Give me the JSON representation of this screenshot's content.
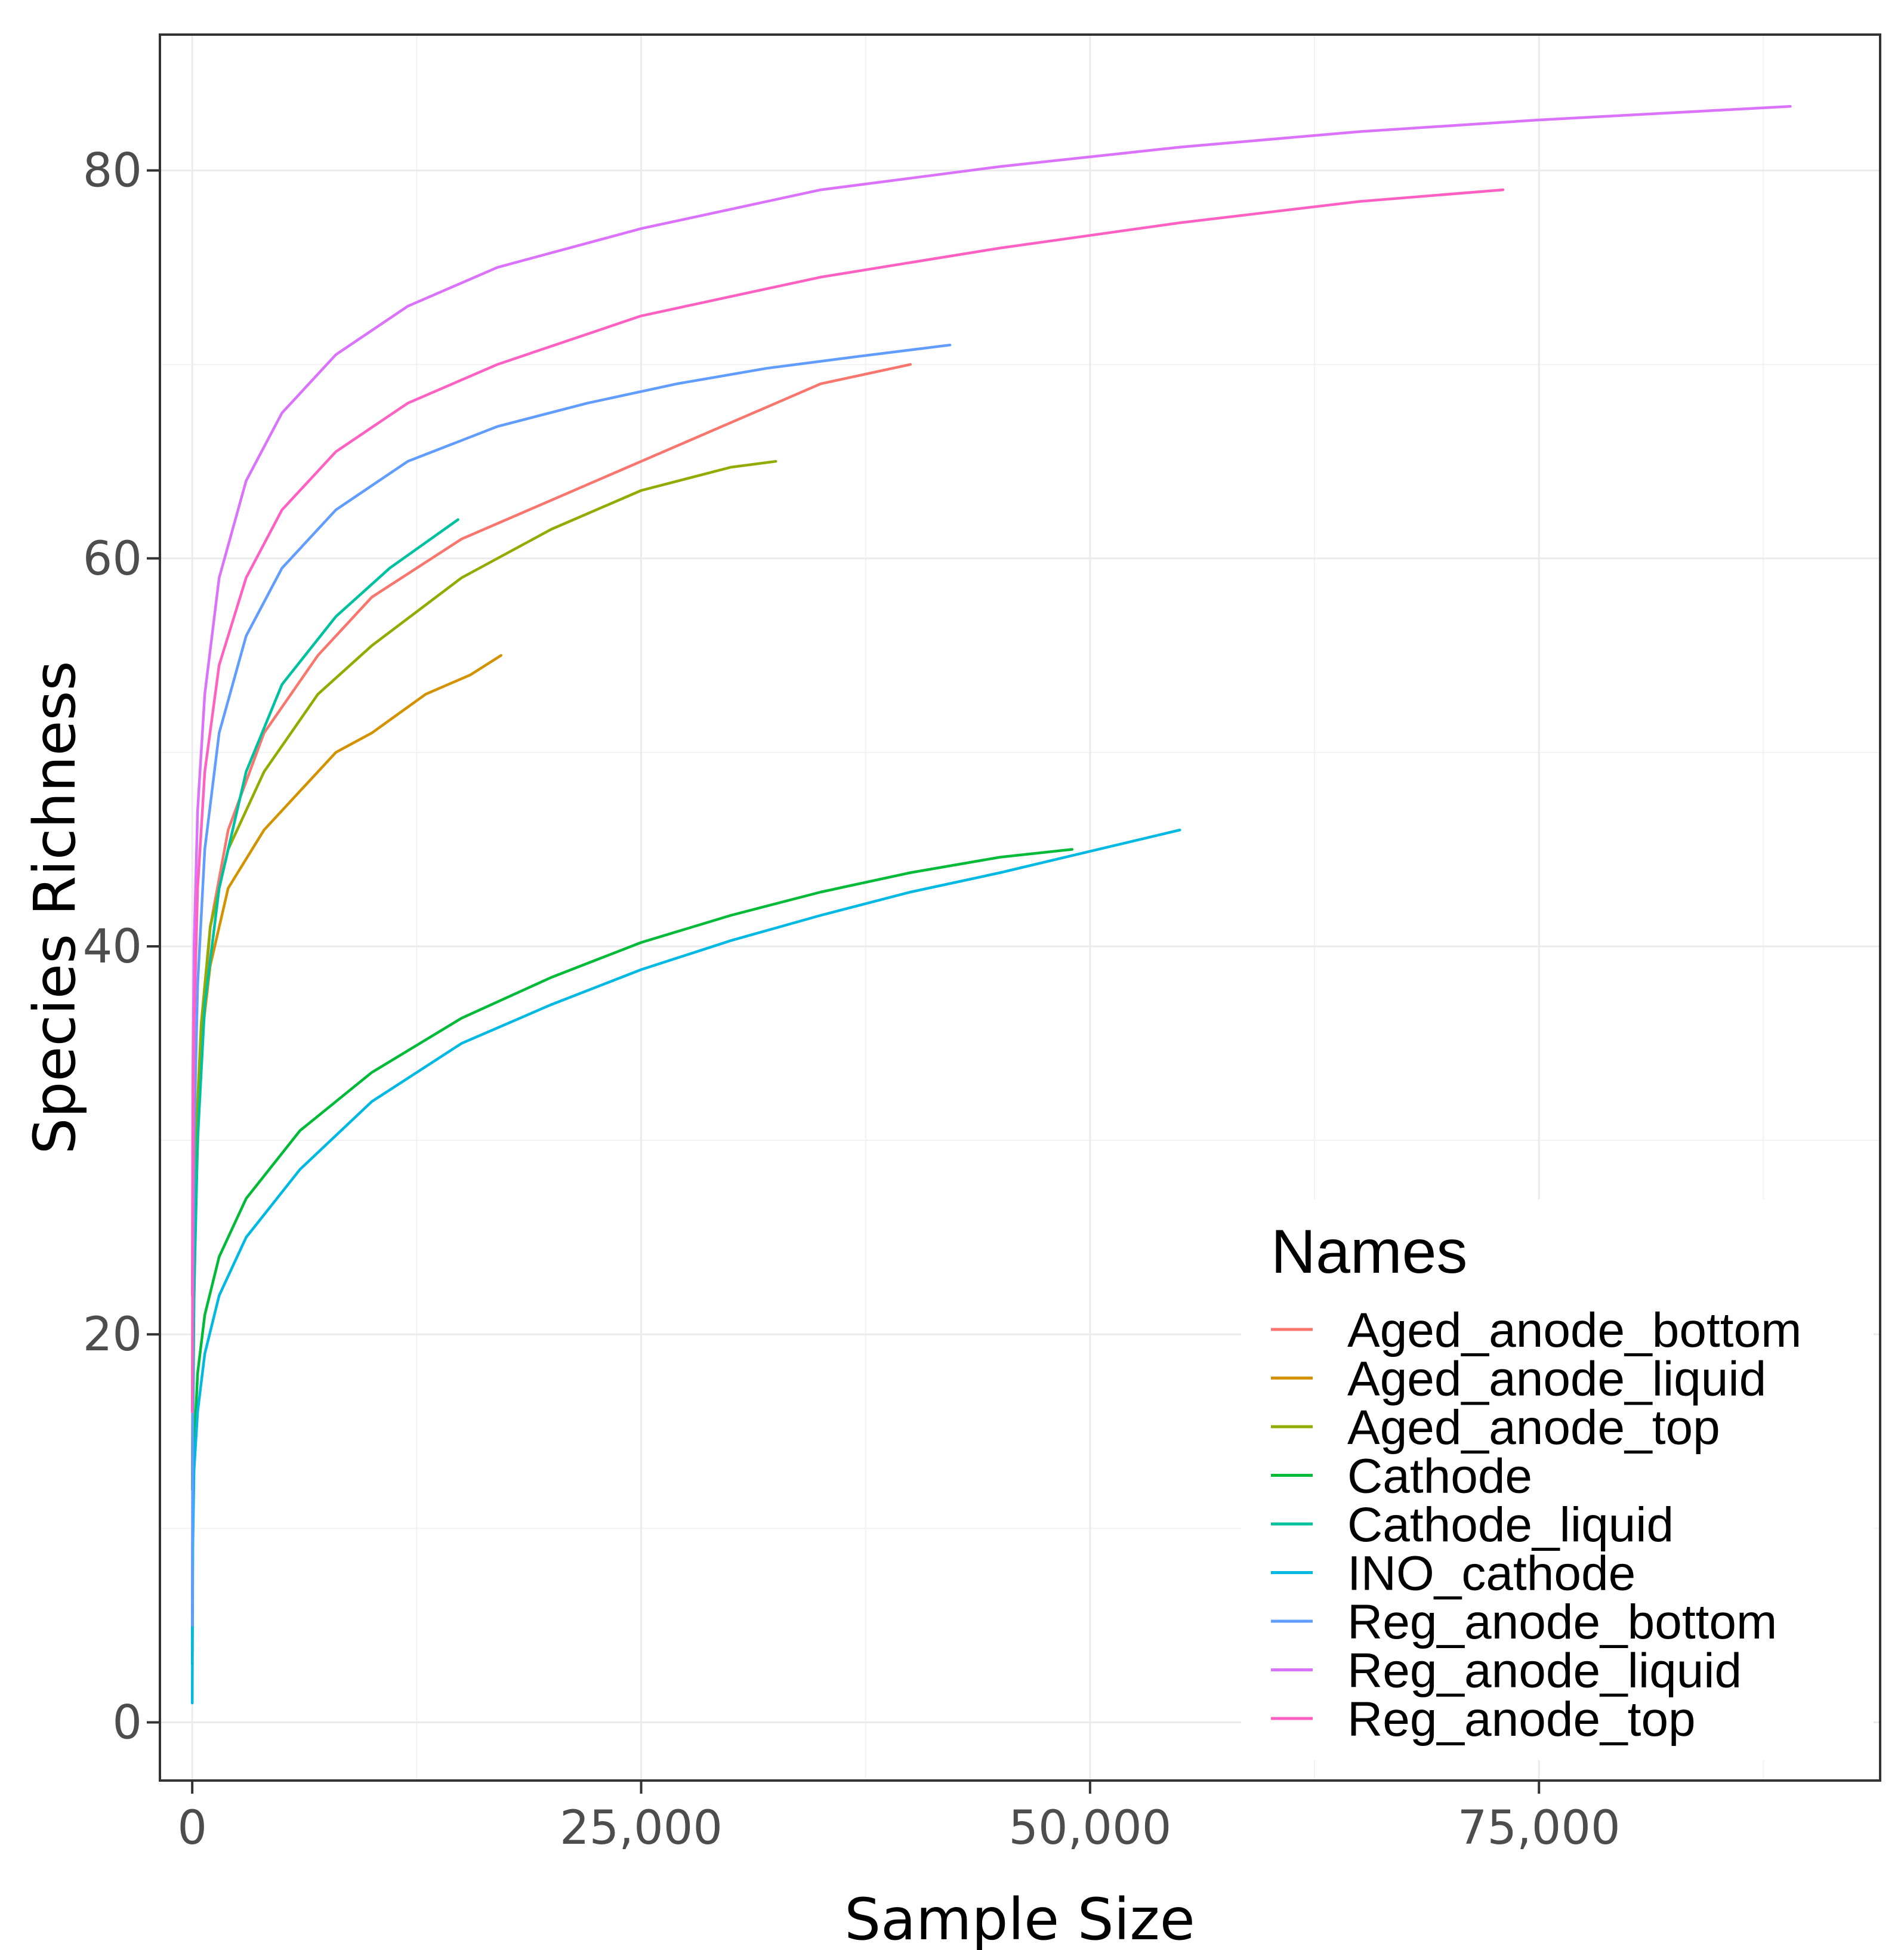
{
  "chart_data": {
    "type": "line",
    "title": "",
    "xlabel": "Sample Size",
    "ylabel": "Species Richness",
    "xlim": [
      -1800,
      94000
    ],
    "ylim": [
      -3,
      87
    ],
    "x_ticks": [
      0,
      25000,
      50000,
      75000
    ],
    "x_tick_labels": [
      "0",
      "25,000",
      "50,000",
      "75,000"
    ],
    "y_ticks": [
      0,
      20,
      40,
      60,
      80
    ],
    "y_tick_labels": [
      "0",
      "20",
      "40",
      "60",
      "80"
    ],
    "grid": true,
    "legend": {
      "title": "Names",
      "position": "bottom-right, inside plot"
    },
    "series": [
      {
        "name": "Aged_anode_bottom",
        "color": "#F8766D",
        "x": [
          1,
          50,
          200,
          500,
          1000,
          2000,
          4000,
          7000,
          10000,
          15000,
          20000,
          25000,
          30000,
          35000,
          40000
        ],
        "y": [
          12,
          19,
          27,
          35,
          41,
          46,
          51,
          55,
          58,
          61,
          63,
          65,
          67,
          69,
          70
        ]
      },
      {
        "name": "Aged_anode_liquid",
        "color": "#D39200",
        "x": [
          1,
          50,
          200,
          500,
          1000,
          2000,
          4000,
          6000,
          8000,
          10000,
          13000,
          15500,
          17200
        ],
        "y": [
          12,
          24,
          30,
          35,
          39,
          43,
          46,
          48,
          50,
          51,
          53,
          54,
          55
        ]
      },
      {
        "name": "Aged_anode_top",
        "color": "#93AA00",
        "x": [
          1,
          50,
          200,
          500,
          1000,
          2000,
          4000,
          7000,
          10000,
          15000,
          20000,
          25000,
          30000,
          32500
        ],
        "y": [
          12,
          24,
          30,
          36,
          41,
          45,
          49,
          53,
          55.5,
          59,
          61.5,
          63.5,
          64.7,
          65
        ]
      },
      {
        "name": "Cathode",
        "color": "#00BA38",
        "x": [
          1,
          30,
          100,
          300,
          700,
          1500,
          3000,
          6000,
          10000,
          15000,
          20000,
          25000,
          30000,
          35000,
          40000,
          45000,
          49000
        ],
        "y": [
          3,
          10,
          14,
          18,
          21,
          24,
          27,
          30.5,
          33.5,
          36.3,
          38.4,
          40.2,
          41.6,
          42.8,
          43.8,
          44.6,
          45
        ]
      },
      {
        "name": "Cathode_liquid",
        "color": "#00C19F",
        "x": [
          1,
          30,
          100,
          300,
          700,
          1500,
          3000,
          5000,
          8000,
          11000,
          14800
        ],
        "y": [
          4,
          14,
          22,
          30,
          37,
          43,
          49,
          53.5,
          57,
          59.5,
          62
        ]
      },
      {
        "name": "INO_cathode",
        "color": "#00B9E3",
        "x": [
          1,
          30,
          100,
          300,
          700,
          1500,
          3000,
          6000,
          10000,
          15000,
          20000,
          25000,
          30000,
          35000,
          40000,
          45000,
          50000,
          55000
        ],
        "y": [
          1,
          9,
          13,
          16,
          19,
          22,
          25,
          28.5,
          32,
          35,
          37,
          38.8,
          40.3,
          41.6,
          42.8,
          43.8,
          44.9,
          46
        ]
      },
      {
        "name": "Reg_anode_bottom",
        "color": "#619CFF",
        "x": [
          1,
          30,
          100,
          300,
          700,
          1500,
          3000,
          5000,
          8000,
          12000,
          17000,
          22000,
          27000,
          32000,
          37000,
          42200
        ],
        "y": [
          5,
          20,
          30,
          38,
          45,
          51,
          56,
          59.5,
          62.5,
          65,
          66.8,
          68,
          69,
          69.8,
          70.4,
          71
        ]
      },
      {
        "name": "Reg_anode_liquid",
        "color": "#DB72FB",
        "x": [
          1,
          30,
          100,
          300,
          700,
          1500,
          3000,
          5000,
          8000,
          12000,
          17000,
          25000,
          35000,
          45000,
          55000,
          65000,
          75000,
          85000,
          89000
        ],
        "y": [
          22,
          33,
          40,
          47,
          53,
          59,
          64,
          67.5,
          70.5,
          73,
          75,
          77,
          79,
          80.2,
          81.2,
          82,
          82.6,
          83.1,
          83.3
        ]
      },
      {
        "name": "Reg_anode_top",
        "color": "#FF61C3",
        "x": [
          1,
          30,
          100,
          300,
          700,
          1500,
          3000,
          5000,
          8000,
          12000,
          17000,
          25000,
          35000,
          45000,
          55000,
          65000,
          73000
        ],
        "y": [
          16,
          28,
          36,
          43,
          49,
          54.5,
          59,
          62.5,
          65.5,
          68,
          70,
          72.5,
          74.5,
          76,
          77.3,
          78.4,
          79
        ]
      }
    ]
  }
}
